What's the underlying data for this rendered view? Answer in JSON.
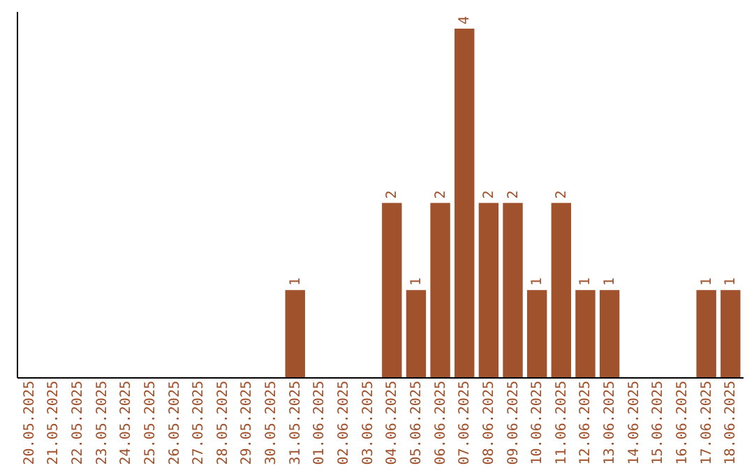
{
  "chart_data": {
    "type": "bar",
    "categories": [
      "20.05.2025",
      "21.05.2025",
      "22.05.2025",
      "23.05.2025",
      "24.05.2025",
      "25.05.2025",
      "26.05.2025",
      "27.05.2025",
      "28.05.2025",
      "29.05.2025",
      "30.05.2025",
      "31.05.2025",
      "01.06.2025",
      "02.06.2025",
      "03.06.2025",
      "04.06.2025",
      "05.06.2025",
      "06.06.2025",
      "07.06.2025",
      "08.06.2025",
      "09.06.2025",
      "10.06.2025",
      "11.06.2025",
      "12.06.2025",
      "13.06.2025",
      "14.06.2025",
      "15.06.2025",
      "16.06.2025",
      "17.06.2025",
      "18.06.2025"
    ],
    "values": [
      0,
      0,
      0,
      0,
      0,
      0,
      0,
      0,
      0,
      0,
      0,
      1,
      0,
      0,
      0,
      2,
      1,
      2,
      4,
      2,
      2,
      1,
      2,
      1,
      1,
      0,
      0,
      0,
      1,
      1
    ],
    "value_labels": [
      null,
      null,
      null,
      null,
      null,
      null,
      null,
      null,
      null,
      null,
      null,
      "1",
      null,
      null,
      null,
      "2",
      "1",
      "2",
      "4",
      "2",
      "2",
      "1",
      "2",
      "1",
      "1",
      null,
      null,
      null,
      "1",
      "1"
    ],
    "color": "#a0522d",
    "ylim": [
      0,
      4.2
    ],
    "tick_labels": "x",
    "grid": false
  }
}
